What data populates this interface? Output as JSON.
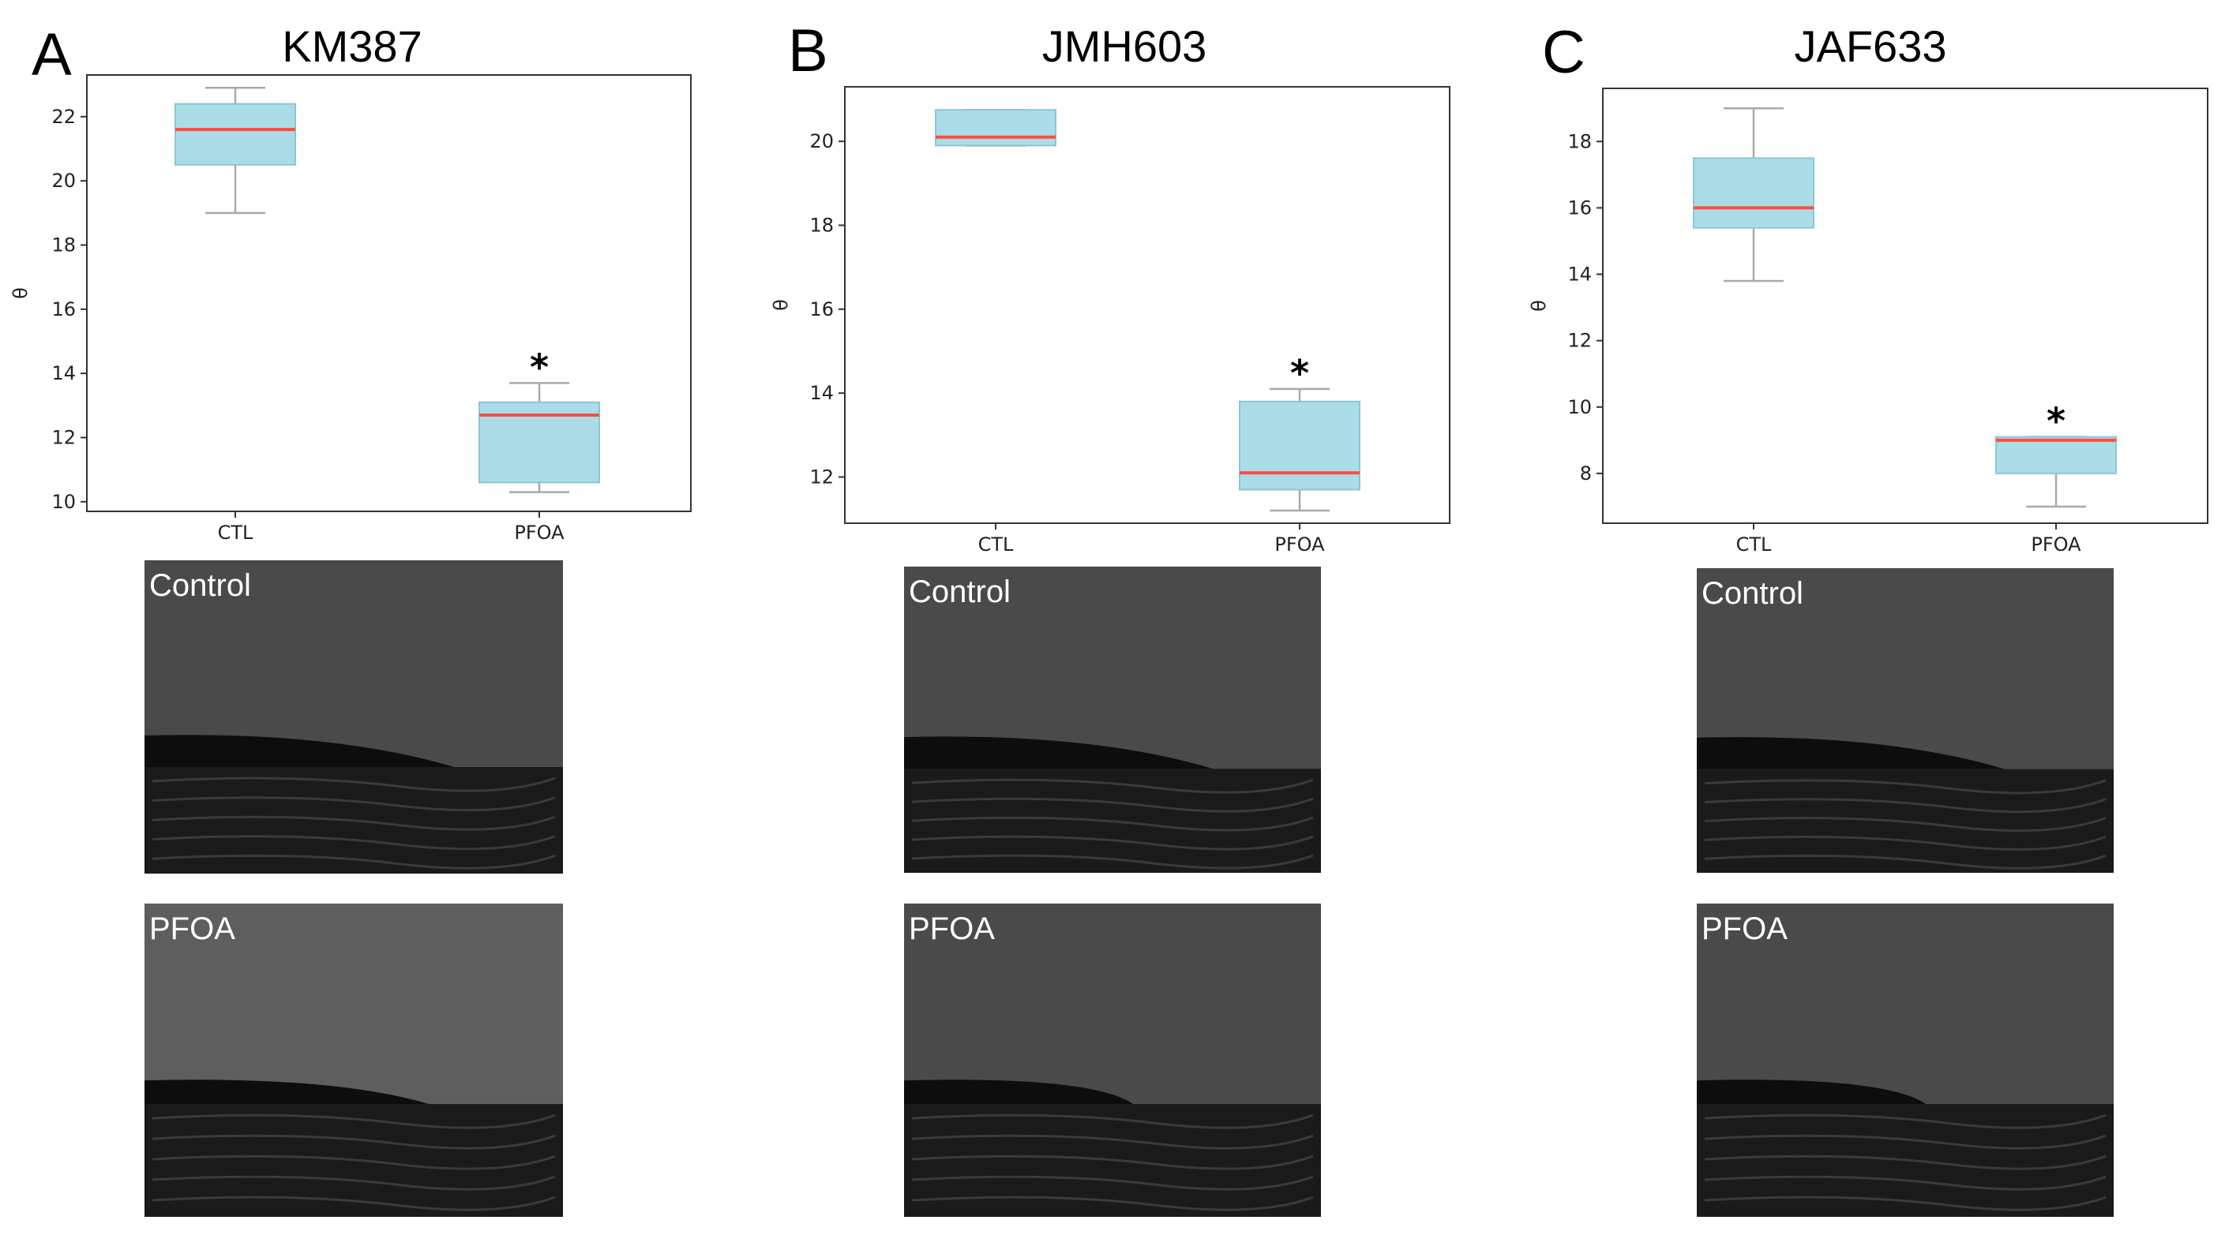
{
  "colors": {
    "box_fill": "#aadde8",
    "box_edge": "#8cc6d4",
    "median": "#ff4d3d",
    "whisker": "#a9a9a9",
    "frame": "#333333",
    "photo_bg": "#4a4a4a",
    "photo_dark": "#0d0d0d"
  },
  "chart_data": [
    {
      "panel": "A",
      "type": "box",
      "title": "KM387",
      "ylabel": "θ",
      "categories": [
        "CTL",
        "PFOA"
      ],
      "ylim": [
        9.7,
        23.3
      ],
      "yticks": [
        10,
        12,
        14,
        16,
        18,
        20,
        22
      ],
      "boxes": [
        {
          "category": "CTL",
          "whislo": 19.0,
          "q1": 20.5,
          "med": 21.6,
          "q3": 22.4,
          "whishi": 22.9
        },
        {
          "category": "PFOA",
          "whislo": 10.3,
          "q1": 10.6,
          "med": 12.7,
          "q3": 13.1,
          "whishi": 13.7,
          "annotation": "*"
        }
      ],
      "photos": [
        "Control",
        "PFOA"
      ]
    },
    {
      "panel": "B",
      "type": "box",
      "title": "JMH603",
      "ylabel": "θ",
      "categories": [
        "CTL",
        "PFOA"
      ],
      "ylim": [
        10.9,
        21.3
      ],
      "yticks": [
        12,
        14,
        16,
        18,
        20
      ],
      "boxes": [
        {
          "category": "CTL",
          "whislo": 19.9,
          "q1": 19.9,
          "med": 20.1,
          "q3": 20.75,
          "whishi": 20.75
        },
        {
          "category": "PFOA",
          "whislo": 11.2,
          "q1": 11.7,
          "med": 12.1,
          "q3": 13.8,
          "whishi": 14.1,
          "annotation": "*"
        }
      ],
      "photos": [
        "Control",
        "PFOA"
      ]
    },
    {
      "panel": "C",
      "type": "box",
      "title": "JAF633",
      "ylabel": "θ",
      "categories": [
        "CTL",
        "PFOA"
      ],
      "ylim": [
        6.5,
        19.6
      ],
      "yticks": [
        8,
        10,
        12,
        14,
        16,
        18
      ],
      "boxes": [
        {
          "category": "CTL",
          "whislo": 13.8,
          "q1": 15.4,
          "med": 16.0,
          "q3": 17.5,
          "whishi": 19.0
        },
        {
          "category": "PFOA",
          "whislo": 7.0,
          "q1": 8.0,
          "med": 9.0,
          "q3": 9.1,
          "whishi": 9.1,
          "annotation": "*"
        }
      ],
      "photos": [
        "Control",
        "PFOA"
      ]
    }
  ]
}
